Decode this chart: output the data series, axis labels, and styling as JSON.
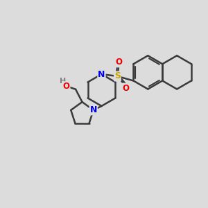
{
  "bg_color": "#dcdcdc",
  "bond_color": "#3a3a3a",
  "bond_width": 1.8,
  "atom_colors": {
    "N": "#0000ee",
    "O": "#ee0000",
    "S": "#ccaa00",
    "H": "#808080",
    "C": "#3a3a3a"
  },
  "figsize": [
    3.0,
    3.0
  ],
  "dpi": 100
}
